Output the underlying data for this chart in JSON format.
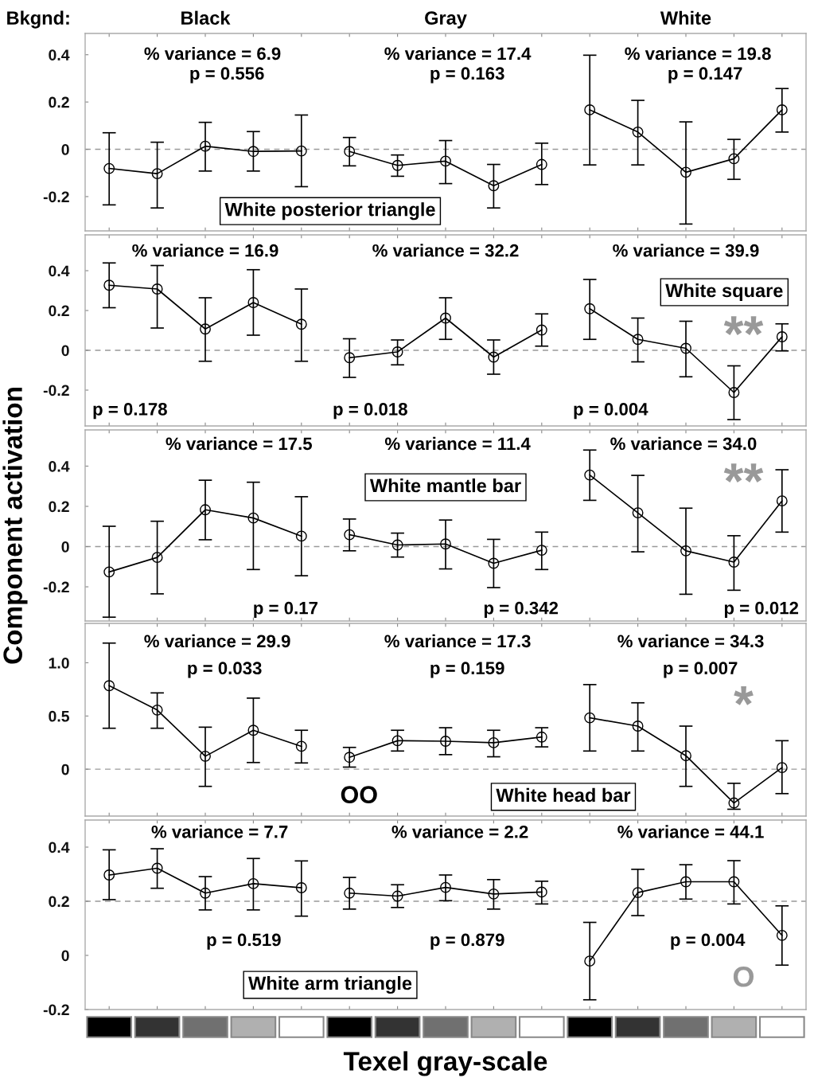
{
  "chart_data": [
    {
      "type": "line",
      "annotations": [
        "Bkgnd:",
        "Black",
        "Gray",
        "White",
        "% variance = 6.9",
        "p = 0.556",
        "White posterior triangle",
        "% variance = 17.4",
        "p = 0.163",
        "% variance = 19.8",
        "p = 0.147"
      ],
      "categories": [
        null,
        null,
        null,
        null,
        null,
        null,
        null,
        null,
        null,
        null,
        null,
        null,
        null,
        null,
        null
      ],
      "marker": "circle",
      "ylim": [
        -0.345,
        0.49
      ],
      "yticks": [
        -0.2,
        0,
        0.2,
        0.4
      ],
      "ref_lines": [
        {
          "axis": "y",
          "value": 0,
          "color": "#999999",
          "line_style": "dashed"
        }
      ],
      "tick_labels": "y",
      "series": [
        {
          "color": "#000000",
          "values": [
            -0.081,
            -0.103,
            0.013,
            -0.009,
            -0.007,
            null,
            null,
            null,
            null,
            null,
            null,
            null,
            null,
            null,
            null
          ],
          "errors": [
            [
              -0.235,
              0.07
            ],
            [
              -0.248,
              0.03
            ],
            [
              -0.092,
              0.114
            ],
            [
              -0.092,
              0.075
            ],
            [
              -0.158,
              0.145
            ],
            null,
            null,
            null,
            null,
            null,
            null,
            null,
            null,
            null,
            null
          ]
        },
        {
          "color": "#000000",
          "values": [
            null,
            null,
            null,
            null,
            null,
            -0.009,
            -0.068,
            -0.05,
            -0.154,
            -0.064,
            null,
            null,
            null,
            null,
            null
          ],
          "errors": [
            null,
            null,
            null,
            null,
            null,
            [
              -0.07,
              0.05
            ],
            [
              -0.114,
              -0.024
            ],
            [
              -0.145,
              0.037
            ],
            [
              -0.248,
              -0.064
            ],
            [
              -0.149,
              0.026
            ],
            null,
            null,
            null,
            null,
            null
          ]
        },
        {
          "color": "#000000",
          "values": [
            null,
            null,
            null,
            null,
            null,
            null,
            null,
            null,
            null,
            null,
            0.167,
            0.073,
            -0.097,
            -0.04,
            0.167
          ],
          "errors": [
            null,
            null,
            null,
            null,
            null,
            null,
            null,
            null,
            null,
            null,
            [
              -0.066,
              0.398
            ],
            [
              -0.066,
              0.207
            ],
            [
              -0.316,
              0.116
            ],
            [
              -0.127,
              0.042
            ],
            [
              0.073,
              0.257
            ]
          ]
        }
      ]
    },
    {
      "type": "line",
      "annotations": [
        "% variance = 16.9",
        "p = 0.178",
        "% variance = 32.2",
        "p = 0.018",
        "% variance = 39.9",
        "p = 0.004",
        "White square",
        "**"
      ],
      "categories": [
        null,
        null,
        null,
        null,
        null,
        null,
        null,
        null,
        null,
        null,
        null,
        null,
        null,
        null,
        null
      ],
      "marker": "circle",
      "ylim": [
        -0.38,
        0.58
      ],
      "yticks": [
        -0.2,
        0,
        0.2,
        0.4
      ],
      "ref_lines": [
        {
          "axis": "y",
          "value": 0,
          "color": "#999999",
          "line_style": "dashed"
        }
      ],
      "tick_labels": "y",
      "series": [
        {
          "color": "#000000",
          "values": [
            0.327,
            0.308,
            0.107,
            0.24,
            0.131,
            null,
            null,
            null,
            null,
            null,
            null,
            null,
            null,
            null,
            null
          ],
          "errors": [
            [
              0.214,
              0.439
            ],
            [
              0.112,
              0.426
            ],
            [
              -0.055,
              0.264
            ],
            [
              0.076,
              0.405
            ],
            [
              -0.055,
              0.308
            ],
            null,
            null,
            null,
            null,
            null,
            null,
            null,
            null,
            null,
            null
          ]
        },
        {
          "color": "#000000",
          "values": [
            null,
            null,
            null,
            null,
            null,
            -0.037,
            -0.008,
            0.162,
            -0.034,
            0.102,
            null,
            null,
            null,
            null,
            null
          ],
          "errors": [
            null,
            null,
            null,
            null,
            null,
            [
              -0.136,
              0.058
            ],
            [
              -0.073,
              0.052
            ],
            [
              0.055,
              0.264
            ],
            [
              -0.12,
              0.052
            ],
            [
              0.021,
              0.183
            ],
            null,
            null,
            null,
            null,
            null
          ]
        },
        {
          "color": "#000000",
          "values": [
            null,
            null,
            null,
            null,
            null,
            null,
            null,
            null,
            null,
            null,
            0.209,
            0.055,
            0.01,
            -0.212,
            0.068
          ],
          "errors": [
            null,
            null,
            null,
            null,
            null,
            null,
            null,
            null,
            null,
            null,
            [
              0.055,
              0.356
            ],
            [
              -0.058,
              0.162
            ],
            [
              -0.133,
              0.146
            ],
            [
              -0.348,
              -0.078
            ],
            [
              -0.003,
              0.133
            ]
          ]
        }
      ]
    },
    {
      "type": "line",
      "ylabel": "Component activation",
      "annotations": [
        "% variance = 17.5",
        "p = 0.17",
        "% variance = 11.4",
        "p = 0.342",
        "White mantle bar",
        "% variance = 34.0",
        "p = 0.012",
        "**"
      ],
      "categories": [
        null,
        null,
        null,
        null,
        null,
        null,
        null,
        null,
        null,
        null,
        null,
        null,
        null,
        null,
        null
      ],
      "marker": "circle",
      "ylim": [
        -0.37,
        0.58
      ],
      "yticks": [
        -0.2,
        0,
        0.2,
        0.4
      ],
      "ref_lines": [
        {
          "axis": "y",
          "value": 0,
          "color": "#999999",
          "line_style": "dashed"
        }
      ],
      "tick_labels": "y",
      "series": [
        {
          "color": "#000000",
          "values": [
            -0.126,
            -0.054,
            0.183,
            0.142,
            0.052,
            null,
            null,
            null,
            null,
            null,
            null,
            null,
            null,
            null,
            null
          ],
          "errors": [
            [
              -0.351,
              0.101
            ],
            [
              -0.235,
              0.126
            ],
            [
              0.034,
              0.33
            ],
            [
              -0.114,
              0.32
            ],
            [
              -0.145,
              0.248
            ],
            null,
            null,
            null,
            null,
            null,
            null,
            null,
            null,
            null,
            null
          ]
        },
        {
          "color": "#000000",
          "values": [
            null,
            null,
            null,
            null,
            null,
            0.059,
            0.008,
            0.013,
            -0.083,
            -0.018,
            null,
            null,
            null,
            null,
            null
          ],
          "errors": [
            null,
            null,
            null,
            null,
            null,
            [
              -0.021,
              0.137
            ],
            [
              -0.052,
              0.067
            ],
            [
              -0.111,
              0.132
            ],
            [
              -0.204,
              0.036
            ],
            [
              -0.114,
              0.072
            ],
            null,
            null,
            null,
            null,
            null
          ]
        },
        {
          "color": "#000000",
          "values": [
            null,
            null,
            null,
            null,
            null,
            null,
            null,
            null,
            null,
            null,
            0.356,
            0.168,
            -0.021,
            -0.077,
            0.227
          ],
          "errors": [
            null,
            null,
            null,
            null,
            null,
            null,
            null,
            null,
            null,
            null,
            [
              0.23,
              0.48
            ],
            [
              -0.026,
              0.354
            ],
            [
              -0.237,
              0.191
            ],
            [
              -0.217,
              0.054
            ],
            [
              0.072,
              0.382
            ]
          ]
        }
      ]
    },
    {
      "type": "line",
      "annotations": [
        "% variance = 29.9",
        "p = 0.033",
        "% variance = 17.3",
        "p = 0.159",
        "OO",
        "White head bar",
        "% variance = 34.3",
        "p = 0.007",
        "*"
      ],
      "categories": [
        null,
        null,
        null,
        null,
        null,
        null,
        null,
        null,
        null,
        null,
        null,
        null,
        null,
        null,
        null
      ],
      "marker": "circle",
      "ylim": [
        -0.44,
        1.37
      ],
      "yticks": [
        0,
        0.5,
        {
          "value": 1,
          "label": "1.0"
        }
      ],
      "ref_lines": [
        {
          "axis": "y",
          "value": 0,
          "color": "#999999",
          "line_style": "dashed"
        }
      ],
      "tick_labels": "y",
      "series": [
        {
          "color": "#000000",
          "values": [
            0.785,
            0.556,
            0.122,
            0.366,
            0.215,
            null,
            null,
            null,
            null,
            null,
            null,
            null,
            null,
            null,
            null
          ],
          "errors": [
            [
              0.385,
              1.185
            ],
            [
              0.385,
              0.717
            ],
            [
              -0.161,
              0.395
            ],
            [
              0.063,
              0.668
            ],
            [
              0.059,
              0.366
            ],
            null,
            null,
            null,
            null,
            null,
            null,
            null,
            null,
            null,
            null
          ]
        },
        {
          "color": "#000000",
          "values": [
            null,
            null,
            null,
            null,
            null,
            0.112,
            0.268,
            0.263,
            0.249,
            0.302,
            null,
            null,
            null,
            null,
            null
          ],
          "errors": [
            null,
            null,
            null,
            null,
            null,
            [
              0.02,
              0.205
            ],
            [
              0.171,
              0.366
            ],
            [
              0.137,
              0.39
            ],
            [
              0.117,
              0.366
            ],
            [
              0.21,
              0.39
            ],
            null,
            null,
            null,
            null,
            null
          ]
        },
        {
          "color": "#000000",
          "values": [
            null,
            null,
            null,
            null,
            null,
            null,
            null,
            null,
            null,
            null,
            0.483,
            0.405,
            0.127,
            -0.317,
            0.015
          ],
          "errors": [
            null,
            null,
            null,
            null,
            null,
            null,
            null,
            null,
            null,
            null,
            [
              0.171,
              0.795
            ],
            [
              0.171,
              0.624
            ],
            [
              -0.161,
              0.405
            ],
            [
              -0.376,
              -0.132
            ],
            [
              -0.229,
              0.268
            ]
          ]
        }
      ]
    },
    {
      "type": "line",
      "xlabel": "Texel gray-scale",
      "annotations": [
        "% variance = 7.7",
        "p = 0.519",
        "White arm triangle",
        "% variance = 2.2",
        "p = 0.879",
        "% variance = 44.1",
        "p = 0.004",
        "O"
      ],
      "categories": [
        null,
        null,
        null,
        null,
        null,
        null,
        null,
        null,
        null,
        null,
        null,
        null,
        null,
        null,
        null
      ],
      "marker": "circle",
      "ylim": [
        -0.2,
        0.5
      ],
      "yticks": [
        -0.2,
        0,
        0.2,
        0.4
      ],
      "ref_lines": [
        {
          "axis": "y",
          "value": 0.2,
          "color": "#999999",
          "line_style": "dashed"
        }
      ],
      "tick_labels": "y",
      "series": [
        {
          "color": "#000000",
          "values": [
            0.297,
            0.322,
            0.23,
            0.265,
            0.25,
            null,
            null,
            null,
            null,
            null,
            null,
            null,
            null,
            null,
            null
          ],
          "errors": [
            [
              0.206,
              0.39
            ],
            [
              0.248,
              0.394
            ],
            [
              0.168,
              0.291
            ],
            [
              0.168,
              0.358
            ],
            [
              0.145,
              0.349
            ],
            null,
            null,
            null,
            null,
            null,
            null,
            null,
            null,
            null,
            null
          ]
        },
        {
          "color": "#000000",
          "values": [
            null,
            null,
            null,
            null,
            null,
            0.23,
            0.219,
            0.251,
            0.227,
            0.234,
            null,
            null,
            null,
            null,
            null
          ],
          "errors": [
            null,
            null,
            null,
            null,
            null,
            [
              0.171,
              0.288
            ],
            [
              0.177,
              0.261
            ],
            [
              0.202,
              0.297
            ],
            [
              0.171,
              0.28
            ],
            [
              0.19,
              0.274
            ],
            null,
            null,
            null,
            null,
            null
          ]
        },
        {
          "color": "#000000",
          "values": [
            null,
            null,
            null,
            null,
            null,
            null,
            null,
            null,
            null,
            null,
            -0.021,
            0.232,
            0.272,
            0.272,
            0.074
          ],
          "errors": [
            null,
            null,
            null,
            null,
            null,
            null,
            null,
            null,
            null,
            null,
            [
              -0.164,
              0.122
            ],
            [
              0.147,
              0.318
            ],
            [
              0.208,
              0.335
            ],
            [
              0.19,
              0.35
            ],
            [
              -0.036,
              0.183
            ]
          ]
        }
      ]
    }
  ]
}
